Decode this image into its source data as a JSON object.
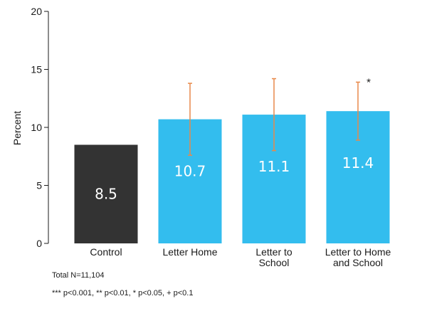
{
  "chart_data": {
    "type": "bar",
    "ylabel": "Percent",
    "xlabel": "",
    "ylim": [
      0,
      20
    ],
    "yticks": [
      0,
      5,
      10,
      15,
      20
    ],
    "categories": [
      [
        "Control"
      ],
      [
        "Letter Home"
      ],
      [
        "Letter to",
        "School"
      ],
      [
        "Letter to Home",
        "and School"
      ]
    ],
    "values": [
      8.5,
      10.7,
      11.1,
      11.4
    ],
    "value_labels": [
      "8.5",
      "10.7",
      "11.1",
      "11.4"
    ],
    "error_bars": [
      null,
      [
        7.6,
        13.8
      ],
      [
        8.0,
        14.2
      ],
      [
        8.9,
        13.9
      ]
    ],
    "significance": [
      "",
      "",
      "",
      "*"
    ],
    "colors": {
      "control": "#333333",
      "treatment": "#33bdee",
      "error_bar": "#e8894a",
      "axis": "#1a1a1a"
    },
    "grid": false,
    "legend": "none"
  },
  "notes": {
    "total_n": "Total N=11,104",
    "significance_key": "*** p<0.001, ** p<0.01, * p<0.05, + p<0.1"
  }
}
